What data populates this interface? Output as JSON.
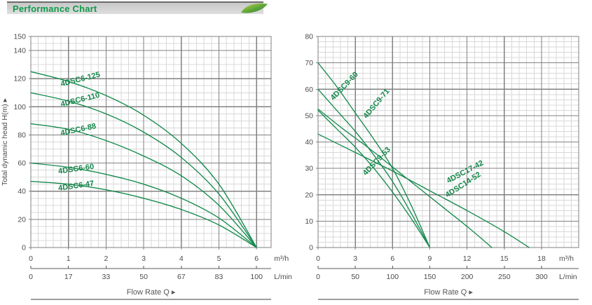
{
  "header": {
    "title": "Performance Chart"
  },
  "colors": {
    "curve": "#168b4e",
    "label": "#15854a",
    "header_green": "#109a4b",
    "grid_minor": "#d8d8d8",
    "grid_major": "#828282",
    "axis_text": "#4c4c4c",
    "axis2_line": "#5a5a5a",
    "flow_text": "#555555",
    "rule": "#3c3c3c",
    "leaf_light": "#a9d03a",
    "leaf_dark": "#157a35"
  },
  "chart_data": [
    {
      "type": "line",
      "ylabel": "Total dynamic head H(m) ▲",
      "x_unit": "m³/h",
      "x2_unit": "L/min",
      "flow_label": "Flow Rate Q ▸",
      "xlim": [
        0,
        6.39
      ],
      "ylim": [
        0,
        150
      ],
      "x_major": 1,
      "x_minor": 0.2,
      "y_major": 20,
      "y_minor": 5,
      "x_ticks": [
        0,
        1,
        2,
        3,
        4,
        5,
        6
      ],
      "x2_ticks": [
        0,
        17,
        33,
        50,
        67,
        83,
        100
      ],
      "y_ticks": [
        0,
        20,
        40,
        60,
        80,
        100,
        120,
        140,
        150
      ],
      "grid": true,
      "legend": "labels-on-curves",
      "series": [
        {
          "name": "4DSC6-125",
          "points": [
            [
              0,
              125
            ],
            [
              1,
              118
            ],
            [
              2,
              108
            ],
            [
              3,
              94
            ],
            [
              4,
              74
            ],
            [
              5,
              45
            ],
            [
              6,
              0
            ]
          ]
        },
        {
          "name": "4DSC6-110",
          "points": [
            [
              0,
              110
            ],
            [
              1,
              104
            ],
            [
              2,
              95
            ],
            [
              3,
              82
            ],
            [
              4,
              64
            ],
            [
              5,
              38
            ],
            [
              6,
              0
            ]
          ]
        },
        {
          "name": "4DSC6-88",
          "points": [
            [
              0,
              88
            ],
            [
              1,
              84
            ],
            [
              2,
              76
            ],
            [
              3,
              65
            ],
            [
              4,
              51
            ],
            [
              5,
              30
            ],
            [
              6,
              0
            ]
          ]
        },
        {
          "name": "4DSC6-60",
          "points": [
            [
              0,
              60
            ],
            [
              1,
              57
            ],
            [
              2,
              52
            ],
            [
              3,
              45
            ],
            [
              4,
              35
            ],
            [
              5,
              21
            ],
            [
              6,
              0
            ]
          ]
        },
        {
          "name": "4DSC6-47",
          "points": [
            [
              0,
              47
            ],
            [
              1,
              45
            ],
            [
              2,
              41
            ],
            [
              3,
              35
            ],
            [
              4,
              27
            ],
            [
              5,
              16
            ],
            [
              6,
              0
            ]
          ]
        }
      ],
      "curve_labels": [
        {
          "text": "4DSC6-125",
          "x": 0.78,
          "y": 118,
          "rot": -14
        },
        {
          "text": "4DSC6-110",
          "x": 0.78,
          "y": 103.5,
          "rot": -14
        },
        {
          "text": "4DSC6-88",
          "x": 0.78,
          "y": 83,
          "rot": -12
        },
        {
          "text": "4DSC6-60",
          "x": 0.72,
          "y": 56,
          "rot": -8
        },
        {
          "text": "4DSC6-47",
          "x": 0.72,
          "y": 44,
          "rot": -8
        }
      ]
    },
    {
      "type": "line",
      "ylabel": "",
      "x_unit": "m³/h",
      "x2_unit": "L/min",
      "flow_label": "Flow Rate Q ▸",
      "xlim": [
        0,
        21
      ],
      "ylim": [
        0,
        80
      ],
      "x_major": 3,
      "x_minor": 0.6,
      "y_major": 10,
      "y_minor": 2,
      "x_ticks": [
        0,
        3,
        6,
        9,
        12,
        15,
        18
      ],
      "x2_ticks": [
        0,
        50,
        100,
        150,
        200,
        250,
        300
      ],
      "y_ticks": [
        0,
        10,
        20,
        30,
        40,
        50,
        60,
        70,
        80
      ],
      "grid": true,
      "legend": "labels-on-curves",
      "series": [
        {
          "name": "4DSC9-71",
          "points": [
            [
              0,
              70
            ],
            [
              1.5,
              61
            ],
            [
              3,
              51
            ],
            [
              4.5,
              41
            ],
            [
              6,
              30
            ],
            [
              7.5,
              16
            ],
            [
              9,
              0
            ]
          ]
        },
        {
          "name": "4DSC9-60",
          "points": [
            [
              0,
              60
            ],
            [
              1.5,
              52
            ],
            [
              3,
              44
            ],
            [
              4.5,
              35
            ],
            [
              6,
              25
            ],
            [
              7.5,
              13
            ],
            [
              9,
              0
            ]
          ]
        },
        {
          "name": "4DSC9-53",
          "points": [
            [
              0,
              52
            ],
            [
              1.5,
              45
            ],
            [
              3,
              38
            ],
            [
              4.5,
              30
            ],
            [
              6,
              21
            ],
            [
              7.5,
              11
            ],
            [
              9,
              0
            ]
          ]
        },
        {
          "name": "4DSC14-52",
          "points": [
            [
              0,
              52.5
            ],
            [
              2,
              45
            ],
            [
              4,
              38
            ],
            [
              6,
              30.5
            ],
            [
              8,
              23
            ],
            [
              10,
              15.5
            ],
            [
              12,
              8
            ],
            [
              14,
              0
            ]
          ]
        },
        {
          "name": "4DSC17-42",
          "points": [
            [
              0,
              43
            ],
            [
              3,
              36
            ],
            [
              6,
              29
            ],
            [
              9,
              21.5
            ],
            [
              12,
              14
            ],
            [
              15,
              6
            ],
            [
              17,
              0
            ]
          ]
        }
      ],
      "curve_labels": [
        {
          "text": "4DSC9-60",
          "x": 0.95,
          "y": 57,
          "rot": -46
        },
        {
          "text": "4DSC9-71",
          "x": 3.6,
          "y": 50,
          "rot": -50
        },
        {
          "text": "4DSC9-53",
          "x": 3.55,
          "y": 28.5,
          "rot": -46
        },
        {
          "text": "4DSC17-42",
          "x": 10.3,
          "y": 26,
          "rot": -28
        },
        {
          "text": "4DSC14-52",
          "x": 10.2,
          "y": 20.5,
          "rot": -33
        }
      ]
    }
  ]
}
